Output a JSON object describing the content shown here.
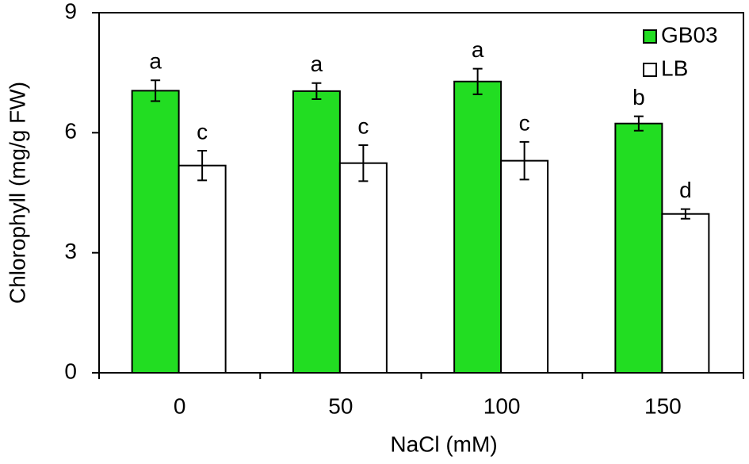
{
  "chart_data": {
    "type": "bar",
    "x_label": "NaCl (mM)",
    "y_label": "Chlorophyll (mg/g FW)",
    "categories": [
      "0",
      "50",
      "100",
      "150"
    ],
    "series": [
      {
        "name": "GB03",
        "color": "#22dd22",
        "values": [
          7.05,
          7.04,
          7.28,
          6.23
        ],
        "errors": [
          0.26,
          0.2,
          0.32,
          0.18
        ],
        "letters": [
          "a",
          "a",
          "a",
          "b"
        ]
      },
      {
        "name": "LB",
        "color": "#ffffff",
        "values": [
          5.18,
          5.24,
          5.3,
          3.97
        ],
        "errors": [
          0.37,
          0.45,
          0.47,
          0.12
        ],
        "letters": [
          "c",
          "c",
          "c",
          "d"
        ]
      }
    ],
    "ylim": [
      0,
      9
    ],
    "yticks": [
      0,
      3,
      6,
      9
    ],
    "legend": "upper right"
  }
}
